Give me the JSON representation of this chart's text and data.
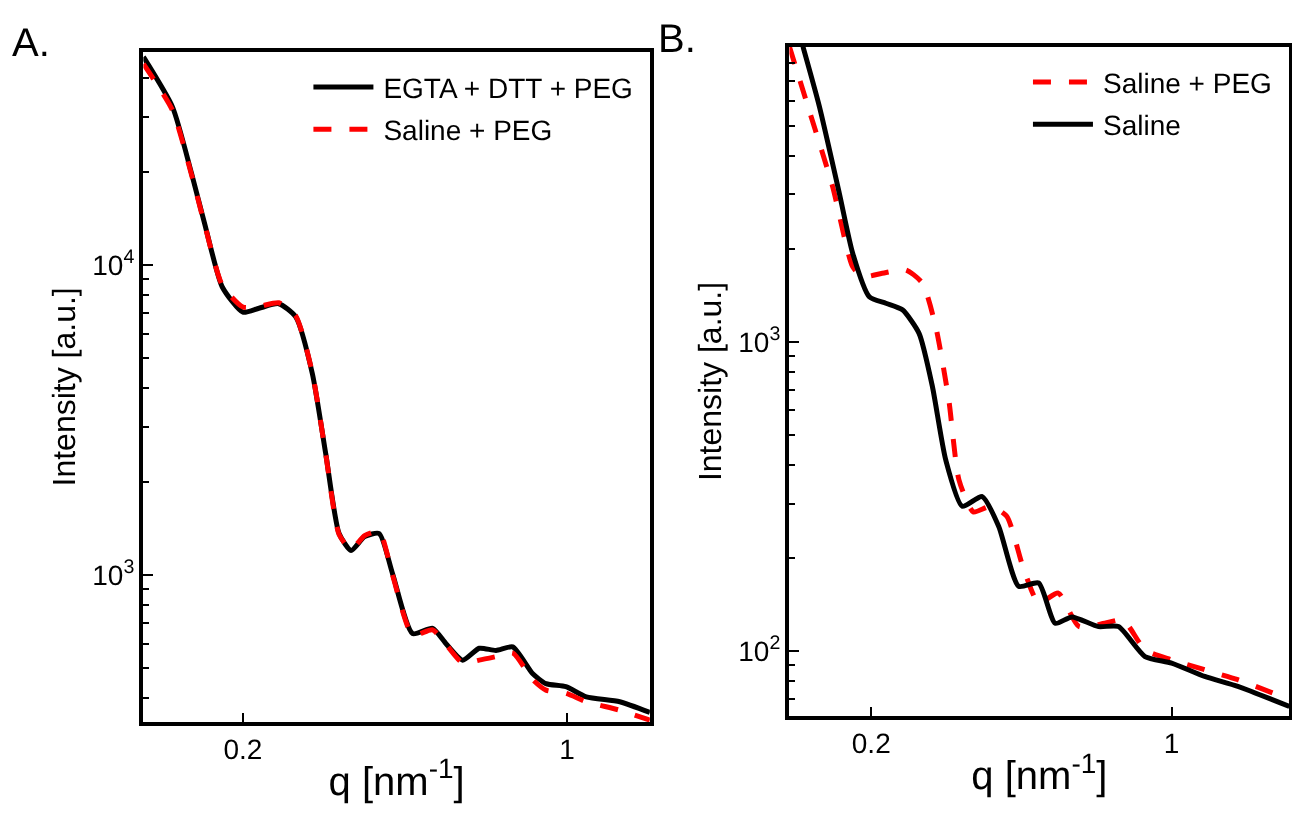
{
  "chart_data": [
    {
      "type": "line",
      "title": "A.",
      "xlabel": "q [nm$^{-1}$]",
      "ylabel": "Intensity [a.u.]",
      "log": "xy",
      "grid": false,
      "legend": "top right",
      "marker": "none",
      "xlim": [
        0.122,
        1.51
      ],
      "xticks": [
        0.2,
        1
      ],
      "ylim": [
        335,
        48800
      ],
      "yticks": [
        {
          "value": 1000,
          "label": "10$^{3}$"
        },
        {
          "value": 10000,
          "label": "10$^{4}$"
        }
      ],
      "series": [
        {
          "name": "EGTA + DTT + PEG",
          "color": "#000000",
          "line_style": "solid",
          "x": [
            0.122,
            0.141,
            0.155,
            0.166,
            0.1805,
            0.2,
            0.2166,
            0.239,
            0.26,
            0.2824,
            0.3018,
            0.3225,
            0.3424,
            0.366,
            0.3936,
            0.4205,
            0.4645,
            0.5132,
            0.548,
            0.5957,
            0.647,
            0.703,
            0.764,
            0.843,
            0.901,
            0.995,
            1.101,
            1.3,
            1.51
          ],
          "values": [
            46900,
            32300,
            19700,
            13300,
            8490,
            7040,
            7250,
            7500,
            6800,
            4460,
            2460,
            1360,
            1200,
            1330,
            1360,
            1010,
            647,
            673,
            601,
            531,
            580,
            571,
            586,
            481,
            446,
            436,
            404,
            390,
            360
          ]
        },
        {
          "name": "Saline + PEG",
          "color": "#ff0000",
          "line_style": "dashed",
          "x": [
            0.122,
            0.141,
            0.155,
            0.166,
            0.1805,
            0.2,
            0.2166,
            0.239,
            0.26,
            0.2824,
            0.3018,
            0.3225,
            0.3424,
            0.366,
            0.3936,
            0.4205,
            0.4645,
            0.5132,
            0.548,
            0.5957,
            0.647,
            0.703,
            0.764,
            0.843,
            0.901,
            0.995,
            1.101,
            1.3,
            1.51
          ],
          "values": [
            44500,
            31500,
            19500,
            13200,
            8600,
            7320,
            7350,
            7550,
            6850,
            4480,
            2450,
            1350,
            1210,
            1340,
            1380,
            1000,
            640,
            665,
            598,
            520,
            531,
            545,
            560,
            460,
            425,
            415,
            390,
            366,
            340
          ]
        }
      ]
    },
    {
      "type": "line",
      "title": "B.",
      "xlabel": "q [nm$^{-1}$]",
      "ylabel": "Intensity [a.u.]",
      "log": "xy",
      "grid": false,
      "legend": "top right",
      "marker": "none",
      "xlim": [
        0.129,
        1.88
      ],
      "xticks": [
        0.2,
        1
      ],
      "ylim": [
        61.5,
        9020
      ],
      "yticks": [
        {
          "value": 100,
          "label": "10$^{2}$"
        },
        {
          "value": 1000,
          "label": "10$^{3}$"
        }
      ],
      "series": [
        {
          "name": "Saline + PEG",
          "color": "#ff0000",
          "line_style": "dashed",
          "x": [
            0.129,
            0.141,
            0.1626,
            0.181,
            0.191,
            0.2122,
            0.2406,
            0.263,
            0.2825,
            0.303,
            0.32,
            0.3456,
            0.3792,
            0.4134,
            0.4506,
            0.4905,
            0.5447,
            0.609,
            0.6986,
            0.7715,
            0.867,
            1.0,
            1.194,
            1.426,
            1.88
          ],
          "values": [
            9020,
            6050,
            3180,
            1752,
            1625,
            1667,
            1710,
            1550,
            1121,
            650,
            358,
            282,
            294,
            273,
            188,
            143,
            154,
            120,
            123,
            126,
            101,
            93.7,
            87,
            80.8,
            69.7
          ]
        },
        {
          "name": "Saline",
          "color": "#000000",
          "line_style": "solid",
          "x": [
            0.1387,
            0.1515,
            0.1686,
            0.181,
            0.1979,
            0.2163,
            0.2364,
            0.2584,
            0.2775,
            0.298,
            0.3257,
            0.3624,
            0.396,
            0.4408,
            0.4905,
            0.536,
            0.586,
            0.676,
            0.752,
            0.867,
            1.0,
            1.194,
            1.426,
            1.88
          ],
          "values": [
            9020,
            5770,
            3020,
            1940,
            1400,
            1334,
            1270,
            1066,
            718,
            416,
            294,
            316,
            253,
            162,
            166,
            123,
            129,
            120,
            120,
            96,
            91.5,
            82.8,
            76.9,
            66.2
          ]
        }
      ]
    }
  ]
}
